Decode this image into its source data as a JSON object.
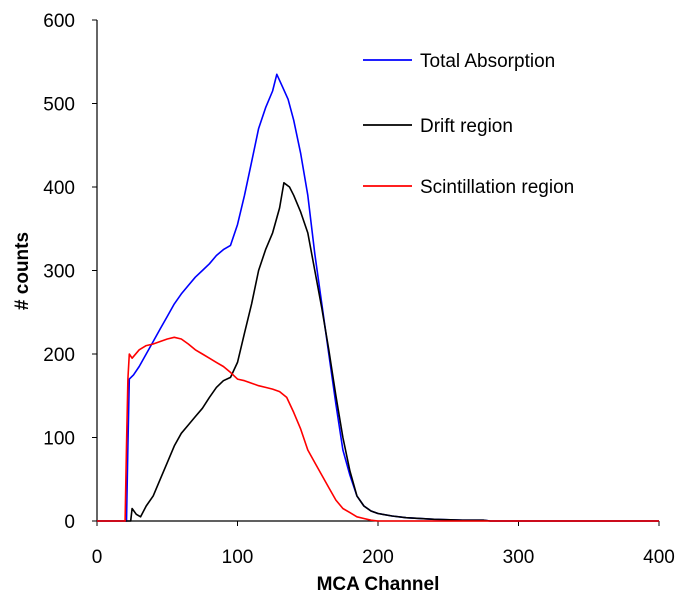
{
  "chart_data": {
    "type": "line",
    "title": "",
    "xlabel": "MCA Channel",
    "ylabel": "# counts",
    "xlim": [
      0,
      400
    ],
    "ylim": [
      0,
      600
    ],
    "x_ticks": [
      "0",
      "100",
      "200",
      "300",
      "400"
    ],
    "y_ticks": [
      "0",
      "100",
      "200",
      "300",
      "400",
      "500",
      "600"
    ],
    "grid": false,
    "legend_position": "top-right",
    "series": [
      {
        "name": "Total Absorption",
        "color": "#0000ff",
        "points": [
          [
            0,
            0
          ],
          [
            21,
            0
          ],
          [
            22,
            90
          ],
          [
            23,
            170
          ],
          [
            26,
            175
          ],
          [
            30,
            185
          ],
          [
            35,
            200
          ],
          [
            40,
            215
          ],
          [
            45,
            230
          ],
          [
            50,
            245
          ],
          [
            55,
            260
          ],
          [
            60,
            272
          ],
          [
            65,
            282
          ],
          [
            70,
            292
          ],
          [
            75,
            300
          ],
          [
            80,
            308
          ],
          [
            85,
            318
          ],
          [
            90,
            325
          ],
          [
            95,
            330
          ],
          [
            100,
            355
          ],
          [
            105,
            390
          ],
          [
            110,
            430
          ],
          [
            115,
            470
          ],
          [
            120,
            495
          ],
          [
            125,
            515
          ],
          [
            128,
            535
          ],
          [
            132,
            520
          ],
          [
            136,
            505
          ],
          [
            140,
            480
          ],
          [
            145,
            440
          ],
          [
            150,
            390
          ],
          [
            155,
            320
          ],
          [
            160,
            260
          ],
          [
            165,
            200
          ],
          [
            170,
            140
          ],
          [
            175,
            85
          ],
          [
            180,
            55
          ],
          [
            185,
            30
          ],
          [
            190,
            18
          ],
          [
            195,
            12
          ],
          [
            200,
            9
          ],
          [
            210,
            6
          ],
          [
            220,
            4
          ],
          [
            240,
            2
          ],
          [
            260,
            1
          ],
          [
            275,
            1
          ],
          [
            280,
            0
          ],
          [
            400,
            0
          ]
        ]
      },
      {
        "name": "Drift region",
        "color": "#000000",
        "points": [
          [
            0,
            0
          ],
          [
            24,
            0
          ],
          [
            25,
            15
          ],
          [
            28,
            8
          ],
          [
            31,
            5
          ],
          [
            35,
            18
          ],
          [
            40,
            30
          ],
          [
            45,
            50
          ],
          [
            50,
            70
          ],
          [
            55,
            90
          ],
          [
            60,
            105
          ],
          [
            65,
            115
          ],
          [
            70,
            125
          ],
          [
            75,
            135
          ],
          [
            80,
            148
          ],
          [
            85,
            160
          ],
          [
            90,
            168
          ],
          [
            95,
            172
          ],
          [
            100,
            190
          ],
          [
            105,
            225
          ],
          [
            110,
            260
          ],
          [
            115,
            300
          ],
          [
            120,
            325
          ],
          [
            125,
            345
          ],
          [
            130,
            375
          ],
          [
            133,
            405
          ],
          [
            137,
            400
          ],
          [
            140,
            390
          ],
          [
            145,
            370
          ],
          [
            150,
            345
          ],
          [
            155,
            300
          ],
          [
            160,
            255
          ],
          [
            165,
            205
          ],
          [
            170,
            150
          ],
          [
            175,
            100
          ],
          [
            180,
            60
          ],
          [
            185,
            30
          ],
          [
            190,
            18
          ],
          [
            195,
            12
          ],
          [
            200,
            9
          ],
          [
            210,
            6
          ],
          [
            220,
            4
          ],
          [
            240,
            2
          ],
          [
            260,
            1
          ],
          [
            275,
            1
          ],
          [
            280,
            0
          ],
          [
            400,
            0
          ]
        ]
      },
      {
        "name": "Scintillation region",
        "color": "#ff0000",
        "points": [
          [
            0,
            0
          ],
          [
            20,
            0
          ],
          [
            21,
            90
          ],
          [
            22,
            170
          ],
          [
            23,
            200
          ],
          [
            25,
            195
          ],
          [
            30,
            205
          ],
          [
            35,
            210
          ],
          [
            40,
            212
          ],
          [
            45,
            215
          ],
          [
            50,
            218
          ],
          [
            55,
            220
          ],
          [
            60,
            218
          ],
          [
            65,
            212
          ],
          [
            70,
            205
          ],
          [
            75,
            200
          ],
          [
            80,
            195
          ],
          [
            85,
            190
          ],
          [
            90,
            185
          ],
          [
            95,
            178
          ],
          [
            100,
            170
          ],
          [
            105,
            168
          ],
          [
            110,
            165
          ],
          [
            115,
            162
          ],
          [
            120,
            160
          ],
          [
            125,
            158
          ],
          [
            130,
            155
          ],
          [
            135,
            148
          ],
          [
            140,
            130
          ],
          [
            145,
            110
          ],
          [
            150,
            85
          ],
          [
            155,
            70
          ],
          [
            160,
            55
          ],
          [
            165,
            40
          ],
          [
            170,
            25
          ],
          [
            175,
            15
          ],
          [
            180,
            10
          ],
          [
            185,
            5
          ],
          [
            190,
            3
          ],
          [
            195,
            1
          ],
          [
            200,
            0
          ],
          [
            400,
            0
          ]
        ]
      }
    ]
  }
}
